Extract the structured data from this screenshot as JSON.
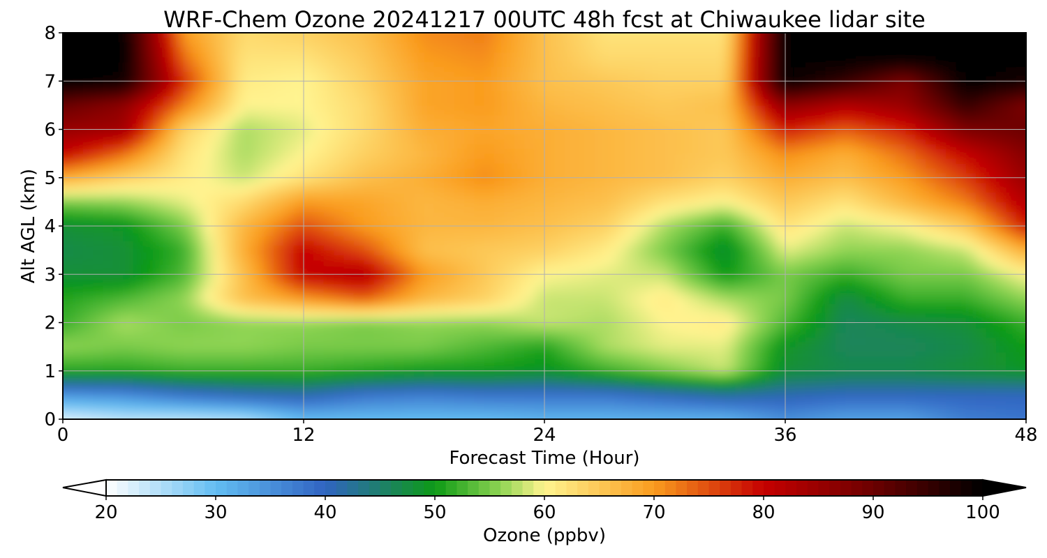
{
  "chart_data": {
    "type": "heatmap",
    "title": "WRF-Chem Ozone  20241217 00UTC 48h fcst at Chiwaukee lidar site",
    "xlabel": "Forecast Time (Hour)",
    "ylabel": "Alt AGL (km)",
    "xlim": [
      0,
      48
    ],
    "ylim": [
      0,
      8
    ],
    "xticks": [
      "0",
      "12",
      "24",
      "36",
      "48"
    ],
    "yticks": [
      "0",
      "1",
      "2",
      "3",
      "4",
      "5",
      "6",
      "7",
      "8"
    ],
    "grid": true,
    "x": [
      0,
      3,
      6,
      9,
      12,
      15,
      18,
      21,
      24,
      27,
      30,
      33,
      36,
      39,
      42,
      45,
      48
    ],
    "y": [
      0,
      0.5,
      1,
      1.5,
      2,
      2.5,
      3,
      3.5,
      4,
      4.5,
      5,
      5.5,
      6,
      6.5,
      7,
      7.5,
      8
    ],
    "z": [
      [
        22,
        24,
        24,
        25,
        30,
        30,
        30,
        30,
        31,
        31,
        31,
        31,
        35,
        33,
        33,
        37,
        38
      ],
      [
        34,
        35,
        38,
        40,
        41,
        38,
        37,
        38,
        38,
        38,
        40,
        42,
        41,
        40,
        40,
        40,
        40
      ],
      [
        51,
        51,
        52,
        52,
        52,
        51,
        50,
        50,
        49,
        52,
        55,
        58,
        48,
        47,
        47,
        48,
        49
      ],
      [
        56,
        55,
        56,
        56,
        55,
        55,
        55,
        53,
        51,
        57,
        59,
        59,
        49,
        46,
        46,
        47,
        50
      ],
      [
        52,
        57,
        55,
        56,
        56,
        55,
        56,
        56,
        58,
        57,
        60,
        61,
        53,
        46,
        47,
        48,
        52
      ],
      [
        51,
        53,
        56,
        66,
        70,
        74,
        67,
        64,
        58,
        58,
        61,
        57,
        55,
        47,
        52,
        52,
        56
      ],
      [
        48,
        48,
        53,
        66,
        80,
        82,
        70,
        65,
        60,
        59,
        58,
        50,
        55,
        52,
        55,
        55,
        60
      ],
      [
        47,
        48,
        52,
        68,
        80,
        75,
        66,
        65,
        64,
        61,
        55,
        48,
        59,
        56,
        56,
        58,
        68
      ],
      [
        48,
        49,
        55,
        67,
        75,
        70,
        67,
        67,
        66,
        64,
        57,
        52,
        62,
        58,
        60,
        65,
        78
      ],
      [
        55,
        56,
        59,
        63,
        70,
        69,
        67,
        68,
        67,
        66,
        62,
        60,
        65,
        62,
        67,
        72,
        82
      ],
      [
        68,
        64,
        61,
        58,
        62,
        66,
        68,
        71,
        68,
        67,
        66,
        64,
        68,
        66,
        70,
        76,
        85
      ],
      [
        80,
        73,
        62,
        57,
        60,
        64,
        67,
        70,
        68,
        67,
        66,
        65,
        71,
        68,
        73,
        80,
        87
      ],
      [
        85,
        84,
        64,
        57,
        59,
        63,
        68,
        69,
        68,
        67,
        66,
        65,
        78,
        74,
        78,
        88,
        90
      ],
      [
        90,
        86,
        72,
        60,
        60,
        63,
        69,
        70,
        67,
        66,
        65,
        66,
        86,
        82,
        85,
        95,
        88
      ],
      [
        100,
        99,
        77,
        61,
        60,
        64,
        69,
        70,
        66,
        65,
        64,
        64,
        100,
        95,
        88,
        100,
        98
      ],
      [
        100,
        100,
        73,
        62,
        62,
        65,
        70,
        71,
        66,
        63,
        63,
        63,
        100,
        100,
        100,
        100,
        100
      ],
      [
        100,
        100,
        70,
        63,
        64,
        66,
        71,
        72,
        66,
        62,
        62,
        62,
        100,
        100,
        100,
        100,
        100
      ]
    ],
    "colorbar": {
      "label": "Ozone  (ppbv)",
      "min": 20,
      "max": 100,
      "ticks": [
        "20",
        "30",
        "40",
        "50",
        "60",
        "70",
        "80",
        "90",
        "100"
      ],
      "extend": "both",
      "colors": {
        "20": "#ffffff",
        "30": "#63bdf2",
        "40": "#3064c2",
        "50": "#0d9a16",
        "56": "#8fd453",
        "60": "#fff490",
        "70": "#fa9c1e",
        "80": "#c50000",
        "90": "#6b0000",
        "100": "#000000"
      }
    }
  }
}
